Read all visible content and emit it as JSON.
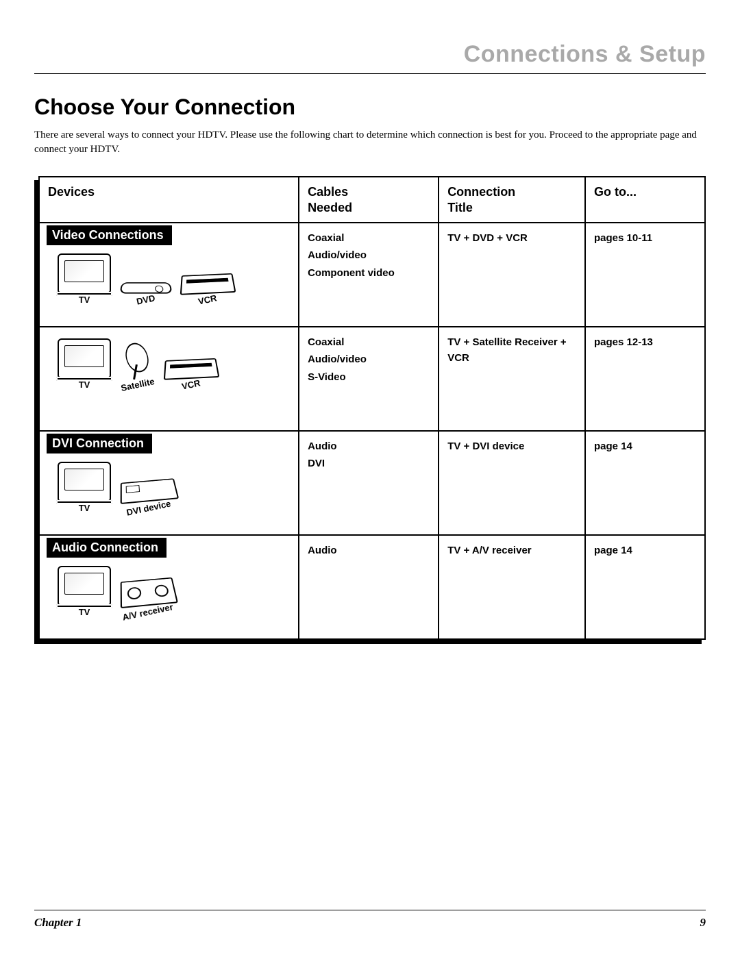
{
  "header": {
    "section_name": "Connections & Setup"
  },
  "page": {
    "title": "Choose Your Connection",
    "intro": "There are several ways to connect your HDTV. Please use the following chart to determine which connection is best for you. Proceed to the appropriate page and connect your HDTV."
  },
  "table": {
    "columns": [
      "Devices",
      "Cables Needed",
      "Connection Title",
      "Go to..."
    ],
    "sections": [
      {
        "label": "Video Connections",
        "rows": [
          {
            "devices": [
              {
                "name": "TV",
                "icon": "tv"
              },
              {
                "name": "DVD",
                "icon": "dvd",
                "angled": true
              },
              {
                "name": "VCR",
                "icon": "vcr",
                "angled": true
              }
            ],
            "cables": [
              "Coaxial",
              "Audio/video",
              "Component video"
            ],
            "title": "TV + DVD + VCR",
            "goto": "pages 10-11"
          },
          {
            "devices": [
              {
                "name": "TV",
                "icon": "tv"
              },
              {
                "name": "Satellite",
                "icon": "sat",
                "angled": true
              },
              {
                "name": "VCR",
                "icon": "vcr",
                "angled": true
              }
            ],
            "cables": [
              "Coaxial",
              "Audio/video",
              "S-Video"
            ],
            "title": "TV + Satellite Receiver + VCR",
            "goto": "pages 12-13"
          }
        ]
      },
      {
        "label": "DVI Connection",
        "rows": [
          {
            "devices": [
              {
                "name": "TV",
                "icon": "tv"
              },
              {
                "name": "DVI device",
                "icon": "box",
                "angled": true
              }
            ],
            "cables": [
              "Audio",
              "DVI"
            ],
            "title": "TV + DVI device",
            "goto": "page 14"
          }
        ]
      },
      {
        "label": "Audio Connection",
        "rows": [
          {
            "devices": [
              {
                "name": "TV",
                "icon": "tv"
              },
              {
                "name": "A/V receiver",
                "icon": "avr",
                "angled": true
              }
            ],
            "cables": [
              "Audio"
            ],
            "title": "TV + A/V receiver",
            "goto": "page 14"
          }
        ]
      }
    ]
  },
  "footer": {
    "chapter": "Chapter 1",
    "page_number": "9"
  },
  "style": {
    "header_color": "#a9a9a9",
    "header_fontsize": 34,
    "title_fontsize": 32,
    "body_fontsize": 15,
    "table_header_fontsize": 18,
    "cell_fontsize": 15,
    "label_bg": "#000000",
    "label_fg": "#ffffff",
    "column_widths_pct": [
      39,
      21,
      22,
      18
    ]
  }
}
